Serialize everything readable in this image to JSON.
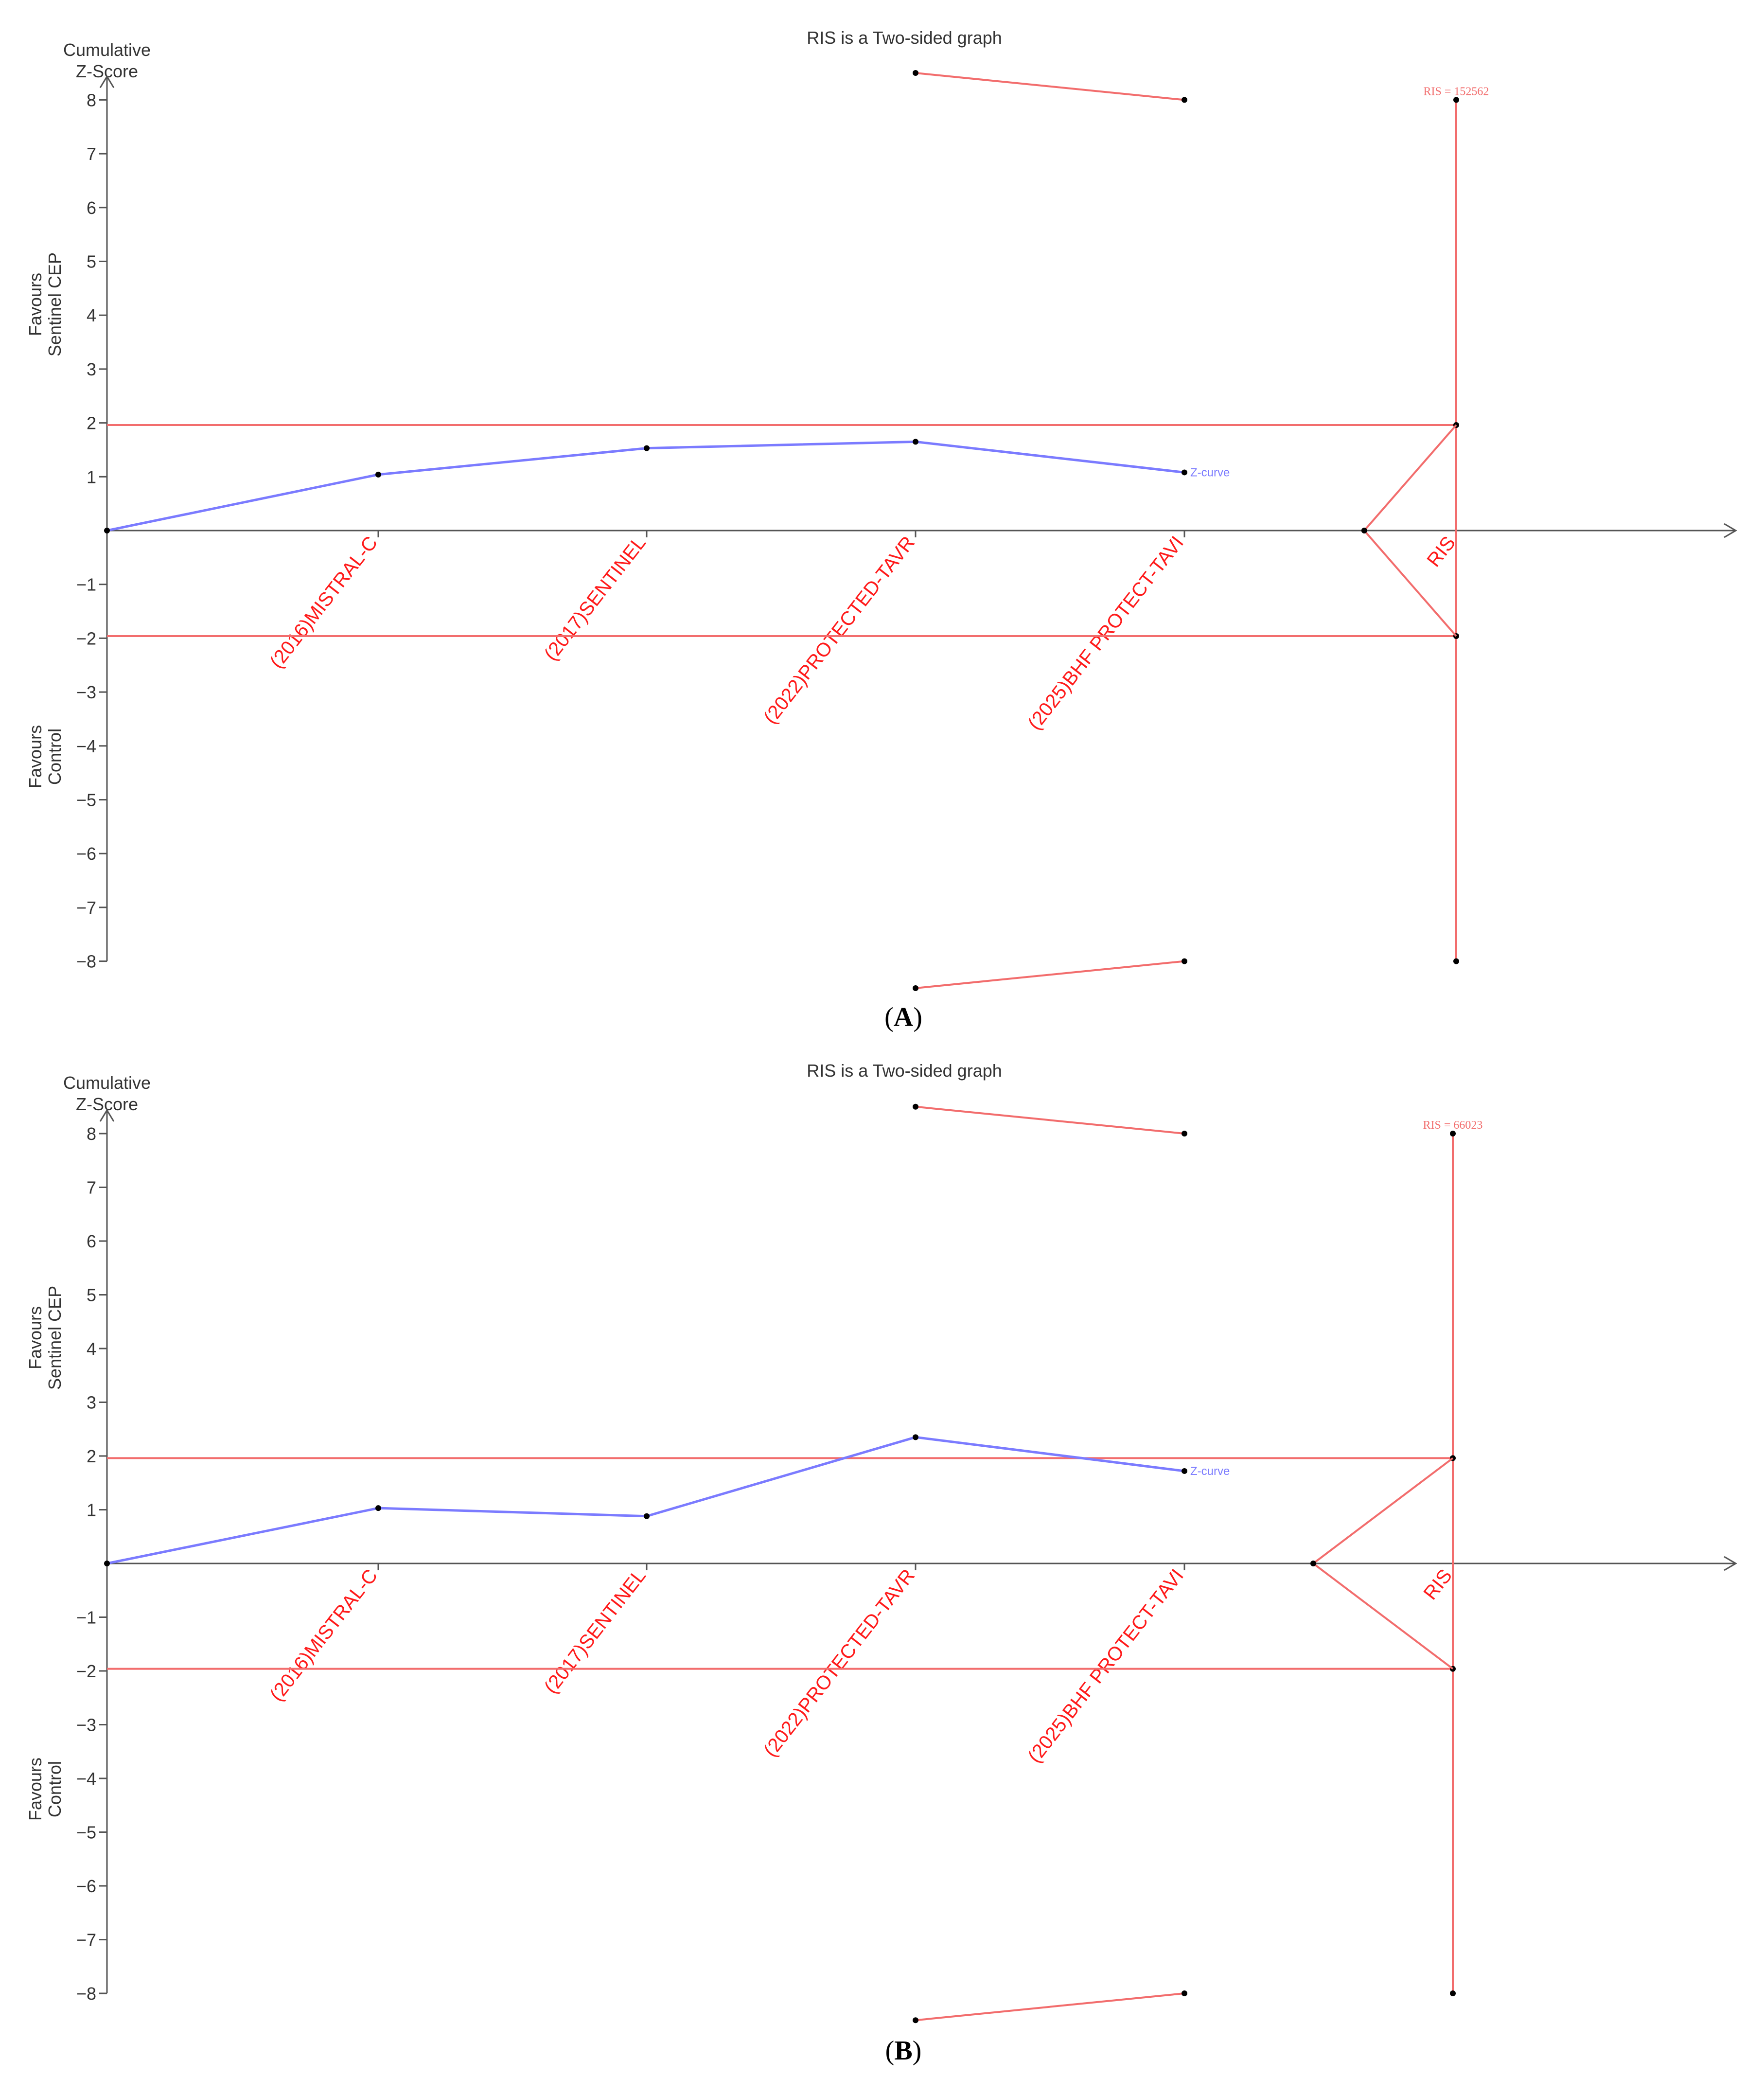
{
  "chart_data": [
    {
      "type": "line",
      "panel_label": "A",
      "title": "RIS is a Two-sided graph",
      "ylabel_top": [
        "Cumulative",
        "Z-Score"
      ],
      "ylabel_positive": [
        "Favours",
        "Sentinel CEP"
      ],
      "ylabel_negative": [
        "Favours",
        "Control"
      ],
      "ylim": [
        -8,
        8
      ],
      "y_ticks": [
        8,
        7,
        6,
        5,
        4,
        3,
        2,
        1,
        -1,
        -2,
        -3,
        -4,
        -5,
        -6,
        -7,
        -8
      ],
      "categories": [
        "(2016)MISTRAL-C",
        "(2017)SENTINEL",
        "(2022)PROTECTED-TAVR",
        "(2025)BHF PROTECT-TAVI"
      ],
      "z_curve": {
        "label": "Z-curve",
        "color": "#7b7bff",
        "values": [
          0,
          1.04,
          1.53,
          1.65,
          1.08
        ]
      },
      "conventional_boundaries": [
        1.96,
        -1.96
      ],
      "monitoring_boundary_upper": [
        8.5,
        8.0
      ],
      "monitoring_boundary_lower": [
        -8.5,
        -8.0
      ],
      "ris_label": "RIS",
      "ris_value_label": "RIS = 152562",
      "ris_vertex_x": 4.67,
      "boundary_color": "#f26d6d"
    },
    {
      "type": "line",
      "panel_label": "B",
      "title": "RIS is a Two-sided graph",
      "ylabel_top": [
        "Cumulative",
        "Z-Score"
      ],
      "ylabel_positive": [
        "Favours",
        "Sentinel CEP"
      ],
      "ylabel_negative": [
        "Favours",
        "Control"
      ],
      "ylim": [
        -8,
        8
      ],
      "y_ticks": [
        8,
        7,
        6,
        5,
        4,
        3,
        2,
        1,
        -1,
        -2,
        -3,
        -4,
        -5,
        -6,
        -7,
        -8
      ],
      "categories": [
        "(2016)MISTRAL-C",
        "(2017)SENTINEL",
        "(2022)PROTECTED-TAVR",
        "(2025)BHF PROTECT-TAVI"
      ],
      "z_curve": {
        "label": "Z-curve",
        "color": "#7b7bff",
        "values": [
          0,
          1.03,
          0.88,
          2.35,
          1.72
        ]
      },
      "conventional_boundaries": [
        1.96,
        -1.96
      ],
      "monitoring_boundary_upper": [
        8.5,
        8.0
      ],
      "monitoring_boundary_lower": [
        -8.5,
        -8.0
      ],
      "ris_label": "RIS",
      "ris_value_label": "RIS = 66023",
      "ris_vertex_x": 4.48,
      "boundary_color": "#f26d6d"
    }
  ]
}
